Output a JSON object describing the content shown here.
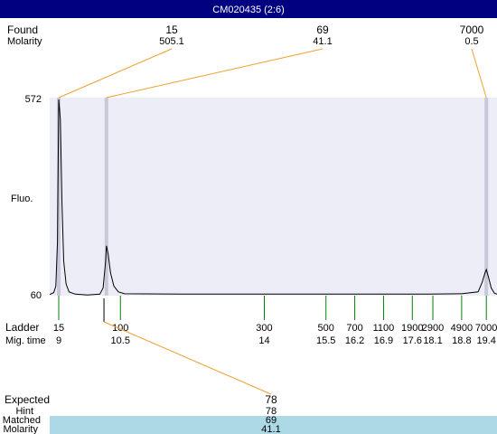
{
  "header": {
    "title": "CM020435 (2:6)"
  },
  "chart_data": {
    "type": "electropherogram",
    "ylabel": "Fluo.",
    "xlim": [
      8.78,
      19.66
    ],
    "ylim": [
      60,
      572
    ],
    "yticks": [
      60,
      572
    ],
    "trace_color": "#000000",
    "trace": {
      "x": [
        8.78,
        8.88,
        8.93,
        8.97,
        9.0,
        9.04,
        9.08,
        9.12,
        9.18,
        9.25,
        9.4,
        9.7,
        10.0,
        10.08,
        10.14,
        10.16,
        10.2,
        10.26,
        10.34,
        10.45,
        10.6,
        12,
        14,
        16,
        18,
        18.8,
        19.2,
        19.3,
        19.37,
        19.4,
        19.45,
        19.52,
        19.6,
        19.66
      ],
      "values": [
        63,
        68,
        85,
        200,
        572,
        520,
        300,
        150,
        90,
        70,
        64,
        62,
        64,
        80,
        150,
        190,
        170,
        120,
        85,
        70,
        65,
        64,
        64,
        64,
        64,
        65,
        70,
        95,
        120,
        128,
        110,
        80,
        66,
        64
      ]
    },
    "found": {
      "label": "Found",
      "sublabel": "Molarity",
      "peaks": [
        {
          "size": 15,
          "molarity": 505.1,
          "time": 9.0
        },
        {
          "size": 69,
          "molarity": 41.1,
          "time": 10.16
        },
        {
          "size": 7000,
          "molarity": 0.5,
          "time": 19.4
        }
      ]
    },
    "ladder": {
      "label": "Ladder",
      "sublabel": "Mig. time",
      "sizes": [
        15,
        100,
        300,
        500,
        700,
        1100,
        1900,
        2900,
        4900,
        7000
      ],
      "times": [
        9,
        10.5,
        14,
        15.5,
        16.2,
        16.9,
        17.6,
        18.1,
        18.8,
        19.4
      ]
    },
    "expected": {
      "label": "Expected",
      "size": 78,
      "time": 10.1,
      "hint_label": "Hint",
      "hint": 78,
      "matched_label": "Matched",
      "matched": 69,
      "molarity_label": "Molarity",
      "molarity": 41.1
    }
  }
}
